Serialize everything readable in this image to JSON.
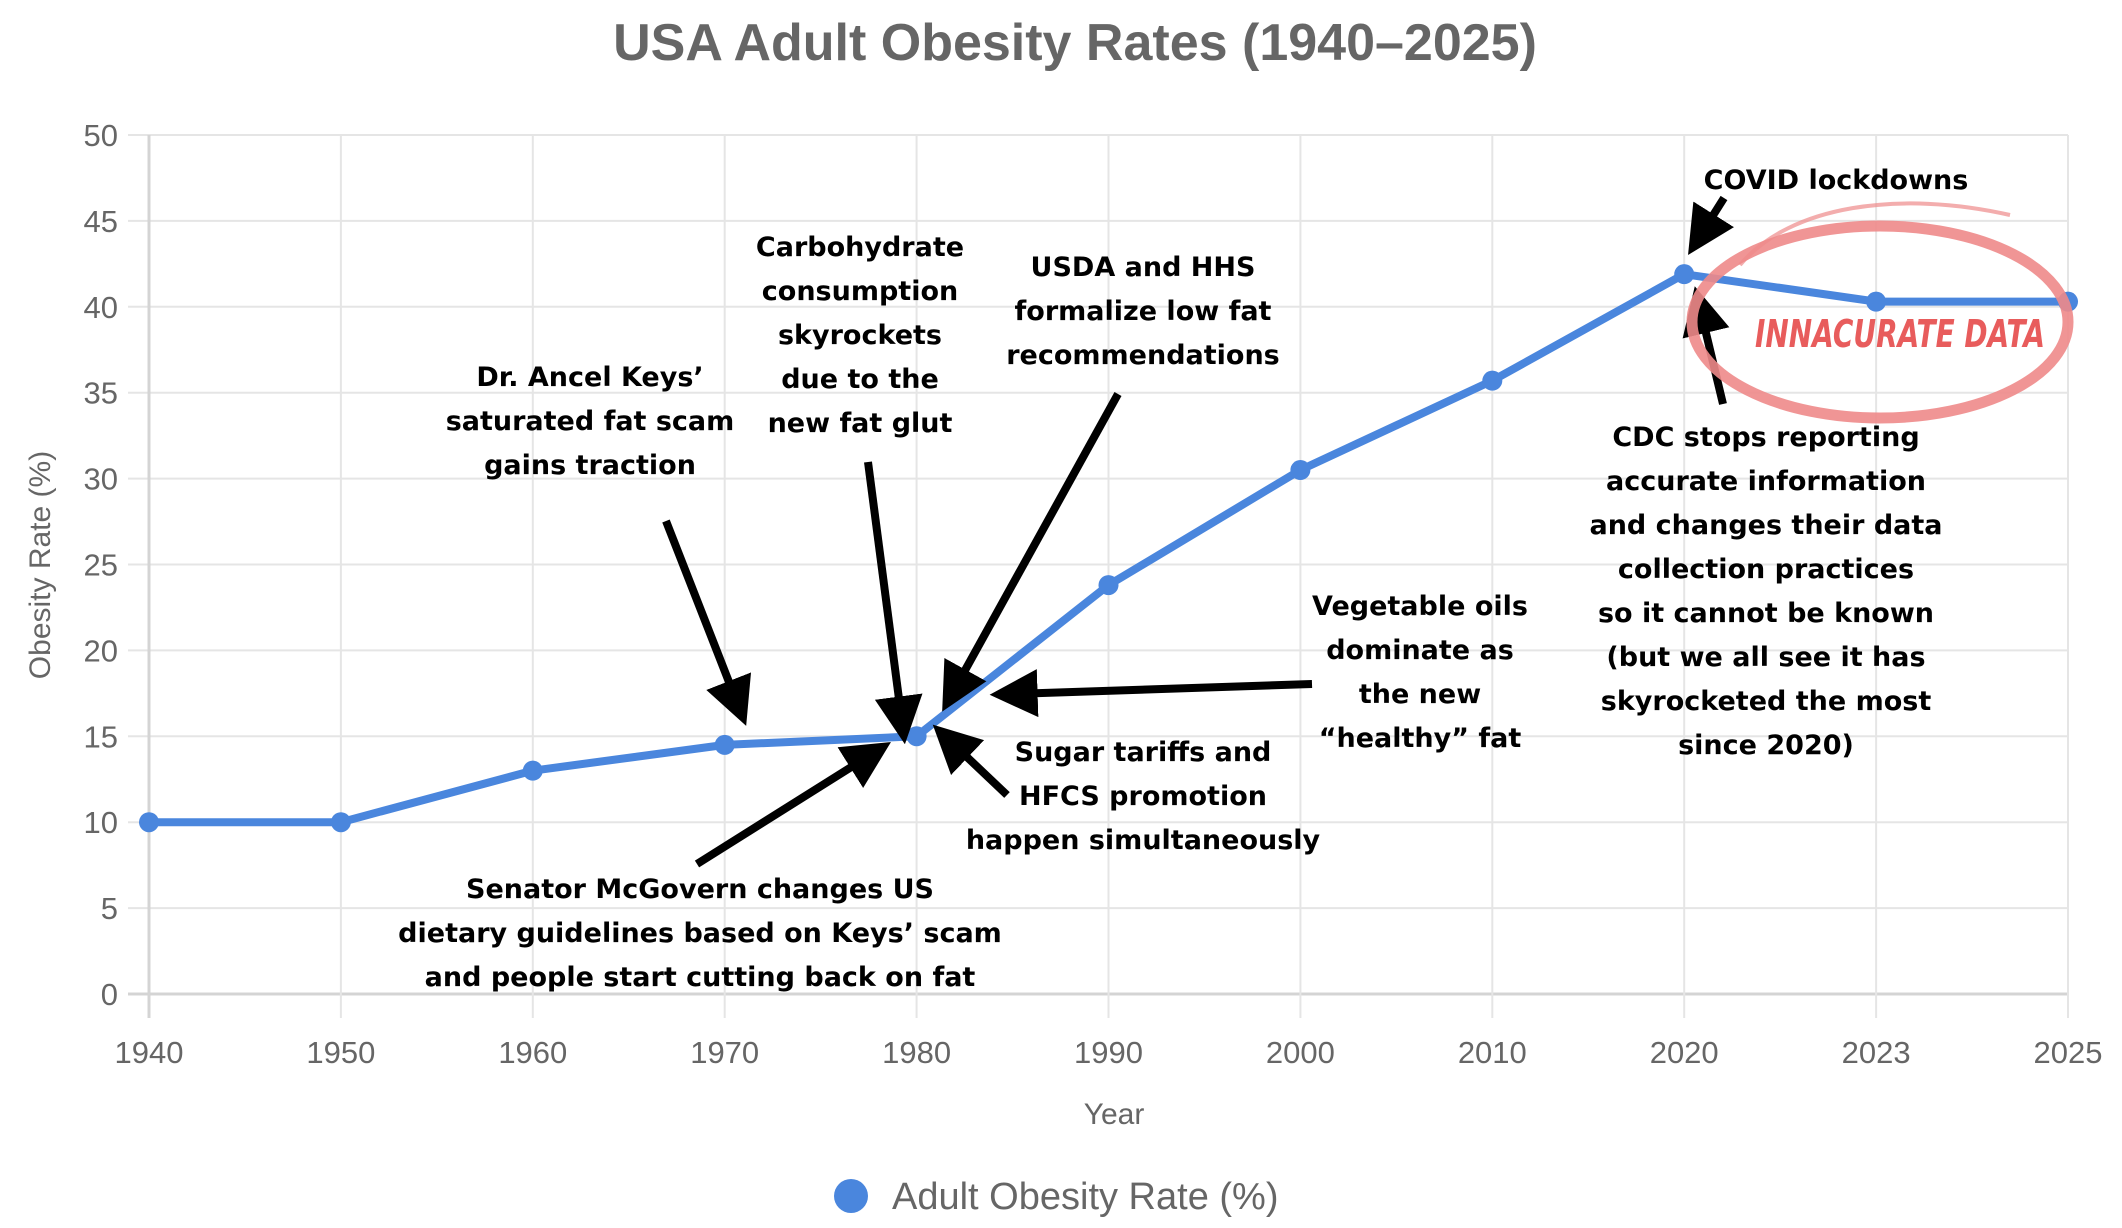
{
  "colors": {
    "series": "#4a86dd",
    "text": "#666666",
    "annotation": "#000000",
    "warning": "#e85c5c",
    "warning_ellipse": "#ee8a8a"
  },
  "chart_data": {
    "type": "line",
    "title": "USA Adult Obesity Rates (1940–2025)",
    "xlabel": "Year",
    "ylabel": "Obesity Rate (%)",
    "ylim": [
      0,
      50
    ],
    "yticks": [
      "0",
      "5",
      "10",
      "15",
      "20",
      "25",
      "30",
      "35",
      "40",
      "45",
      "50"
    ],
    "ytick_values": [
      0,
      5,
      10,
      15,
      20,
      25,
      30,
      35,
      40,
      45,
      50
    ],
    "categories": [
      "1940",
      "1950",
      "1960",
      "1970",
      "1980",
      "1990",
      "2000",
      "2010",
      "2020",
      "2023",
      "2025"
    ],
    "grid": true,
    "legend_position": "bottom-center",
    "series": [
      {
        "name": "Adult Obesity Rate (%)",
        "values": [
          10.0,
          10.0,
          13.0,
          14.5,
          15.0,
          23.8,
          30.5,
          35.7,
          41.9,
          40.3,
          40.3
        ]
      }
    ],
    "annotations": [
      {
        "id": "keys",
        "lines": [
          "Dr. Ancel Keys’",
          "saturated fat scam",
          "gains traction"
        ],
        "points_to": "1970"
      },
      {
        "id": "carbs",
        "lines": [
          "Carbohydrate",
          "consumption",
          "skyrockets",
          "due to the",
          "new fat glut"
        ],
        "points_to": "1980"
      },
      {
        "id": "usda",
        "lines": [
          "USDA and HHS",
          "formalize low fat",
          "recommendations"
        ],
        "points_to": "1980"
      },
      {
        "id": "mcgovern",
        "lines": [
          "Senator McGovern changes US",
          "dietary guidelines based on Keys’ scam",
          "and people start cutting back on fat"
        ],
        "points_to": "1980"
      },
      {
        "id": "sugar",
        "lines": [
          "Sugar tariffs and",
          "HFCS promotion",
          "happen simultaneously"
        ],
        "points_to": "1980"
      },
      {
        "id": "vegoils",
        "lines": [
          "Vegetable oils",
          "dominate as",
          "the new",
          "“healthy” fat"
        ],
        "points_to": "1980-1990"
      },
      {
        "id": "covid",
        "lines": [
          "COVID lockdowns"
        ],
        "points_to": "2020"
      },
      {
        "id": "cdc",
        "lines": [
          "CDC stops reporting",
          "accurate information",
          "and changes their data",
          "collection practices",
          "so it cannot be known",
          "(but we all see it has",
          "skyrocketed the most",
          "since 2020)"
        ],
        "points_to": "2020"
      },
      {
        "id": "inaccurate",
        "lines": [
          "INNACURATE DATA"
        ],
        "highlights": [
          "2020",
          "2023",
          "2025"
        ]
      }
    ]
  }
}
